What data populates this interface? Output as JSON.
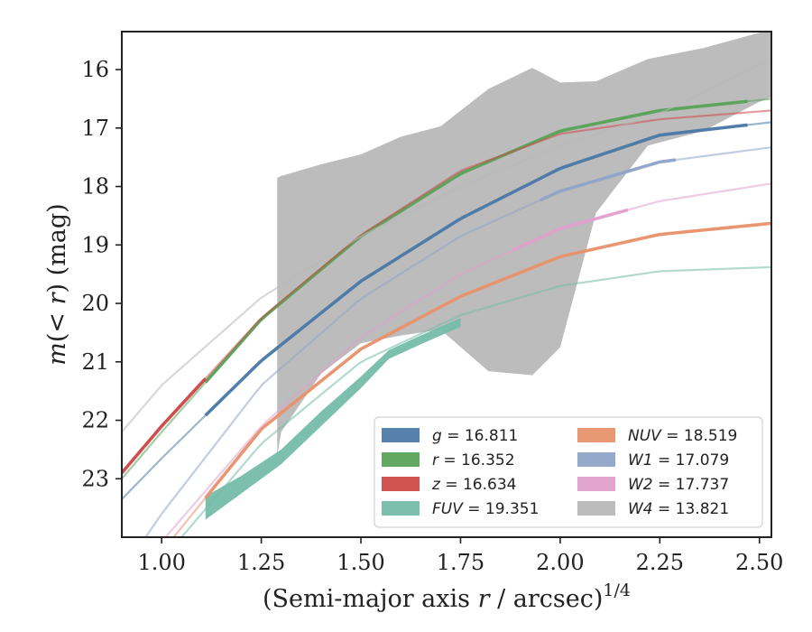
{
  "chart_data": {
    "type": "line",
    "xlabel": "(Semi-major axis r / arcsec)^{1/4}",
    "ylabel": "m(< r) (mag)",
    "xlim": [
      0.9,
      2.53
    ],
    "ylim": [
      24.0,
      15.35
    ],
    "y_inverted": true,
    "x_ticks": [
      1.0,
      1.25,
      1.5,
      1.75,
      2.0,
      2.25,
      2.5
    ],
    "x_tick_labels": [
      "1.00",
      "1.25",
      "1.50",
      "1.75",
      "2.00",
      "2.25",
      "2.50"
    ],
    "y_ticks": [
      16,
      17,
      18,
      19,
      20,
      21,
      22,
      23
    ],
    "y_tick_labels": [
      "16",
      "17",
      "18",
      "19",
      "20",
      "21",
      "22",
      "23"
    ],
    "grid": false,
    "legend_position": "lower-right",
    "legend_columns": 2,
    "series": [
      {
        "name": "g = 16.811",
        "label": {
          "var": "g",
          "value": "16.811"
        },
        "color": "#4c7aa8",
        "model": {
          "x": [
            0.9,
            1.0,
            1.25,
            1.5,
            1.75,
            2.0,
            2.25,
            2.53
          ],
          "y": [
            23.35,
            22.65,
            20.98,
            19.62,
            18.55,
            17.69,
            17.12,
            16.9
          ]
        },
        "data_range": [
          1.11,
          2.47
        ]
      },
      {
        "name": "r = 16.352",
        "label": {
          "var": "r",
          "value": "16.352"
        },
        "color": "#5aa35a",
        "model": {
          "x": [
            0.9,
            1.0,
            1.25,
            1.5,
            1.75,
            2.0,
            2.25,
            2.53
          ],
          "y": [
            23.0,
            22.2,
            20.27,
            18.85,
            17.78,
            17.05,
            16.7,
            16.5
          ]
        },
        "data_range": [
          1.11,
          2.47
        ]
      },
      {
        "name": "z = 16.634",
        "label": {
          "var": "z",
          "value": "16.634"
        },
        "color": "#d04848",
        "model": {
          "x": [
            0.9,
            1.0,
            1.25,
            1.5,
            1.75,
            2.0,
            2.25,
            2.53
          ],
          "y": [
            22.9,
            22.1,
            20.25,
            18.83,
            17.73,
            17.1,
            16.85,
            16.7
          ]
        },
        "data_range": [
          0.9,
          1.11
        ]
      },
      {
        "name": "FUV = 19.351",
        "label": {
          "var": "FUV",
          "value": "19.351"
        },
        "color": "#74bca8",
        "model": {
          "x": [
            1.05,
            1.25,
            1.5,
            1.75,
            2.0,
            2.25,
            2.53
          ],
          "y": [
            24.0,
            22.4,
            21.0,
            20.2,
            19.7,
            19.45,
            19.38
          ]
        },
        "data_x": [
          1.11,
          1.2,
          1.3,
          1.4,
          1.5,
          1.57,
          1.65,
          1.75
        ],
        "data_upper": [
          23.3,
          22.95,
          22.5,
          21.85,
          21.25,
          20.8,
          20.55,
          20.25
        ],
        "data_lower": [
          23.7,
          23.25,
          22.75,
          22.1,
          21.45,
          20.95,
          20.7,
          20.4
        ]
      },
      {
        "name": "NUV = 18.519",
        "label": {
          "var": "NUV",
          "value": "18.519"
        },
        "color": "#e8926d",
        "model": {
          "x": [
            1.03,
            1.25,
            1.5,
            1.75,
            2.0,
            2.25,
            2.53
          ],
          "y": [
            24.0,
            22.15,
            20.78,
            19.88,
            19.2,
            18.82,
            18.63
          ]
        },
        "data_range": [
          1.11,
          2.53
        ]
      },
      {
        "name": "W1 = 17.079",
        "label": {
          "var": "W1",
          "value": "17.079"
        },
        "color": "#8fa4c8",
        "model": {
          "x": [
            0.96,
            1.0,
            1.25,
            1.5,
            1.75,
            2.0,
            2.25,
            2.53
          ],
          "y": [
            24.0,
            23.6,
            21.4,
            19.92,
            18.85,
            18.08,
            17.58,
            17.33
          ]
        },
        "data_range": [
          1.95,
          2.29
        ]
      },
      {
        "name": "W2 = 17.737",
        "label": {
          "var": "W2",
          "value": "17.737"
        },
        "color": "#e0a0cc",
        "model": {
          "x": [
            1.01,
            1.25,
            1.5,
            1.75,
            2.0,
            2.25,
            2.53
          ],
          "y": [
            24.0,
            22.1,
            20.58,
            19.5,
            18.72,
            18.25,
            17.95
          ]
        },
        "data_range": [
          1.88,
          2.17
        ]
      },
      {
        "name": "W4 = 13.821",
        "label": {
          "var": "W4",
          "value": "13.821"
        },
        "color": "#b8b8b8",
        "model": {
          "x": [
            0.9,
            1.0,
            1.25,
            1.5,
            1.75,
            2.0,
            2.25,
            2.53
          ],
          "y": [
            22.2,
            21.4,
            19.9,
            18.85,
            18.0,
            17.3,
            16.75,
            15.82
          ]
        },
        "band_x": [
          1.29,
          1.3,
          1.4,
          1.5,
          1.6,
          1.7,
          1.82,
          1.93,
          2.0,
          2.09,
          2.22,
          2.36,
          2.5,
          2.53
        ],
        "band_upper": [
          17.85,
          17.82,
          17.62,
          17.45,
          17.15,
          16.97,
          16.33,
          15.97,
          16.22,
          16.2,
          15.82,
          15.63,
          15.37,
          15.33
        ],
        "band_lower": [
          22.6,
          22.2,
          21.2,
          20.68,
          20.55,
          20.45,
          21.16,
          21.23,
          20.75,
          18.45,
          17.3,
          17.05,
          16.55,
          16.47
        ]
      }
    ]
  }
}
